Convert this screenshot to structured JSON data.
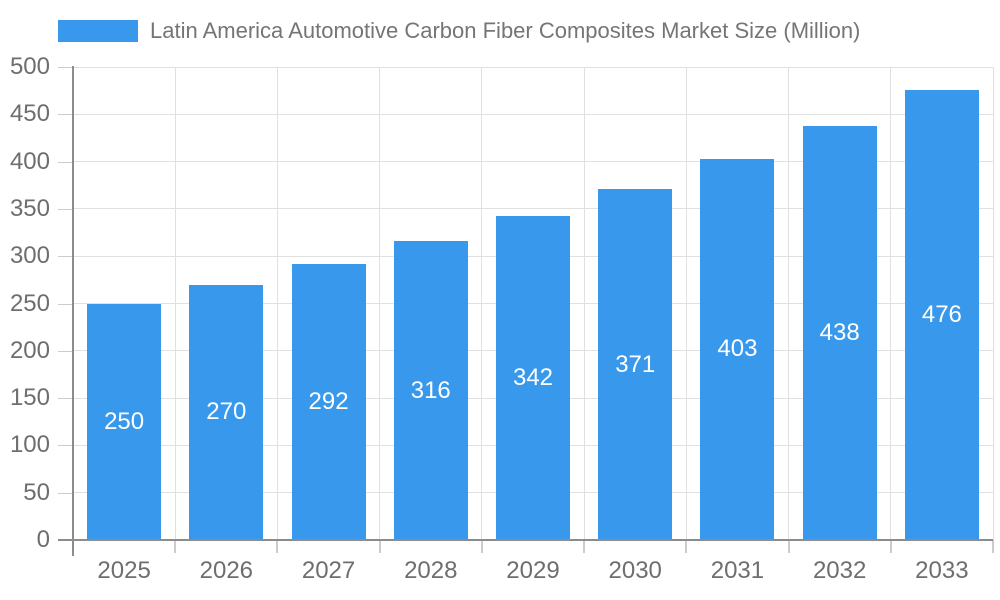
{
  "legend": {
    "label": "Latin America Automotive Carbon Fiber Composites Market Size (Million)"
  },
  "chart_data": {
    "type": "bar",
    "title": "Latin America Automotive Carbon Fiber Composites Market Size (Million)",
    "categories": [
      "2025",
      "2026",
      "2027",
      "2028",
      "2029",
      "2030",
      "2031",
      "2032",
      "2033"
    ],
    "values": [
      250,
      270,
      292,
      316,
      342,
      371,
      403,
      438,
      476
    ],
    "xlabel": "",
    "ylabel": "",
    "ylim": [
      0,
      500
    ],
    "ytick_step": 50,
    "ytick_labels": [
      "0",
      "50",
      "100",
      "150",
      "200",
      "250",
      "300",
      "350",
      "400",
      "450",
      "500"
    ],
    "grid": true,
    "legend_position": "top-left",
    "bar_label_position": "center-inside",
    "colors": {
      "bar": "#3899ec",
      "bar_label": "#ffffff",
      "axis_label": "#6e6e6e",
      "title": "#757575",
      "gridline": "#e0e0e0",
      "tick": "#cccccc",
      "axis_line": "#8c8c8c",
      "background": "#ffffff"
    }
  }
}
